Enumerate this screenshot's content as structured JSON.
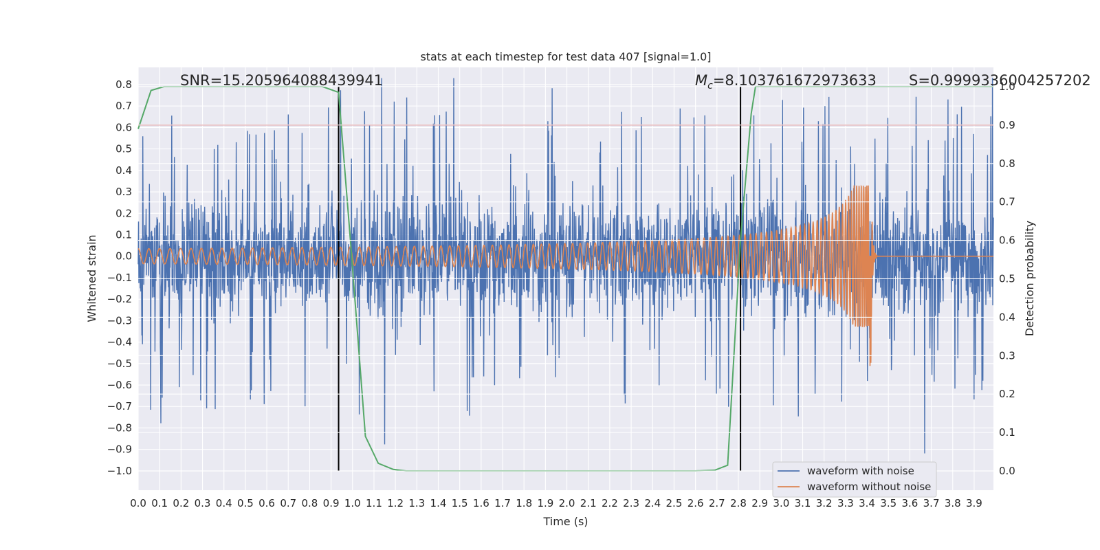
{
  "chart_data": {
    "type": "line",
    "title": "stats at each timestep for test data 407 [signal=1.0]",
    "xlabel": "Time (s)",
    "ylabel": "Whitened strain",
    "ylabel_right": "Detection probability",
    "xlim": [
      0.0,
      3.99
    ],
    "ylim": [
      -1.09,
      0.88
    ],
    "ylim_right": [
      -0.05,
      1.05
    ],
    "x_ticks": [
      "0.0",
      "0.1",
      "0.2",
      "0.3",
      "0.4",
      "0.5",
      "0.6",
      "0.7",
      "0.8",
      "0.9",
      "1.0",
      "1.1",
      "1.2",
      "1.3",
      "1.4",
      "1.5",
      "1.6",
      "1.7",
      "1.8",
      "1.9",
      "2.0",
      "2.1",
      "2.2",
      "2.3",
      "2.4",
      "2.5",
      "2.6",
      "2.7",
      "2.8",
      "2.9",
      "3.0",
      "3.1",
      "3.2",
      "3.3",
      "3.4",
      "3.5",
      "3.6",
      "3.7",
      "3.8",
      "3.9"
    ],
    "y_ticks": [
      "0.8",
      "0.7",
      "0.6",
      "0.5",
      "0.4",
      "0.3",
      "0.2",
      "0.1",
      "0.0",
      "−0.1",
      "−0.2",
      "−0.3",
      "−0.4",
      "−0.5",
      "−0.6",
      "−0.7",
      "−0.8",
      "−0.9",
      "−1.0"
    ],
    "y_right_ticks": [
      "1.0",
      "0.9",
      "0.8",
      "0.7",
      "0.6",
      "0.5",
      "0.4",
      "0.3",
      "0.2",
      "0.1",
      "0.0"
    ],
    "threshold": {
      "axis": "right",
      "value": 0.9,
      "color": "#c44e52"
    },
    "vlines": [
      {
        "x": 0.935,
        "color": "#000000"
      },
      {
        "x": 2.81,
        "color": "#000000"
      }
    ],
    "series": [
      {
        "name": "waveform with noise",
        "axis": "left",
        "color": "#4c72b0",
        "kind": "noise",
        "x_range": [
          0.0,
          3.99
        ],
        "core_amplitude": 0.22,
        "peak_amplitude": 0.9,
        "seed": 407
      },
      {
        "name": "waveform without noise",
        "axis": "left",
        "color": "#dd8452",
        "kind": "chirp",
        "x_range": [
          0.0,
          3.99
        ],
        "start_frequency_hz": 20,
        "merger_time": 3.42,
        "amplitude_start": 0.035,
        "amplitude_peak": 0.33,
        "min_value_at_merger": -0.52,
        "post_merger_value": 0.0
      },
      {
        "name": "detection probability",
        "axis": "right",
        "color": "#55a868",
        "kind": "line",
        "x": [
          0.0,
          0.06,
          0.12,
          0.2,
          0.3,
          0.5,
          0.7,
          0.86,
          0.935,
          0.99,
          1.06,
          1.12,
          1.19,
          1.25,
          1.4,
          1.6,
          1.8,
          2.0,
          2.2,
          2.4,
          2.6,
          2.69,
          2.75,
          2.81,
          2.86,
          2.88,
          3.0,
          3.2,
          3.4,
          3.6,
          3.8,
          3.99
        ],
        "y": [
          0.89,
          0.99,
          1.0,
          1.0,
          1.0,
          1.0,
          1.0,
          1.0,
          0.985,
          0.6,
          0.09,
          0.02,
          0.004,
          0.0,
          0.0,
          0.0,
          0.0,
          0.0,
          0.0,
          0.0,
          0.0,
          0.002,
          0.015,
          0.6,
          0.93,
          1.0,
          1.0,
          1.0,
          1.0,
          1.0,
          1.0,
          1.0
        ]
      }
    ],
    "annotations": [
      {
        "id": "snr",
        "text": "SNR=15.205964088439941"
      },
      {
        "id": "mc_value",
        "symbol": "M",
        "subscript": "c",
        "text": "=8.103761672973633"
      },
      {
        "id": "s",
        "text": "S=0.9999336004257202"
      }
    ],
    "legend": {
      "position": "bottom-right",
      "entries": [
        {
          "label": "waveform with noise",
          "color": "#4c72b0"
        },
        {
          "label": "waveform without noise",
          "color": "#dd8452"
        }
      ]
    },
    "grid": true
  }
}
